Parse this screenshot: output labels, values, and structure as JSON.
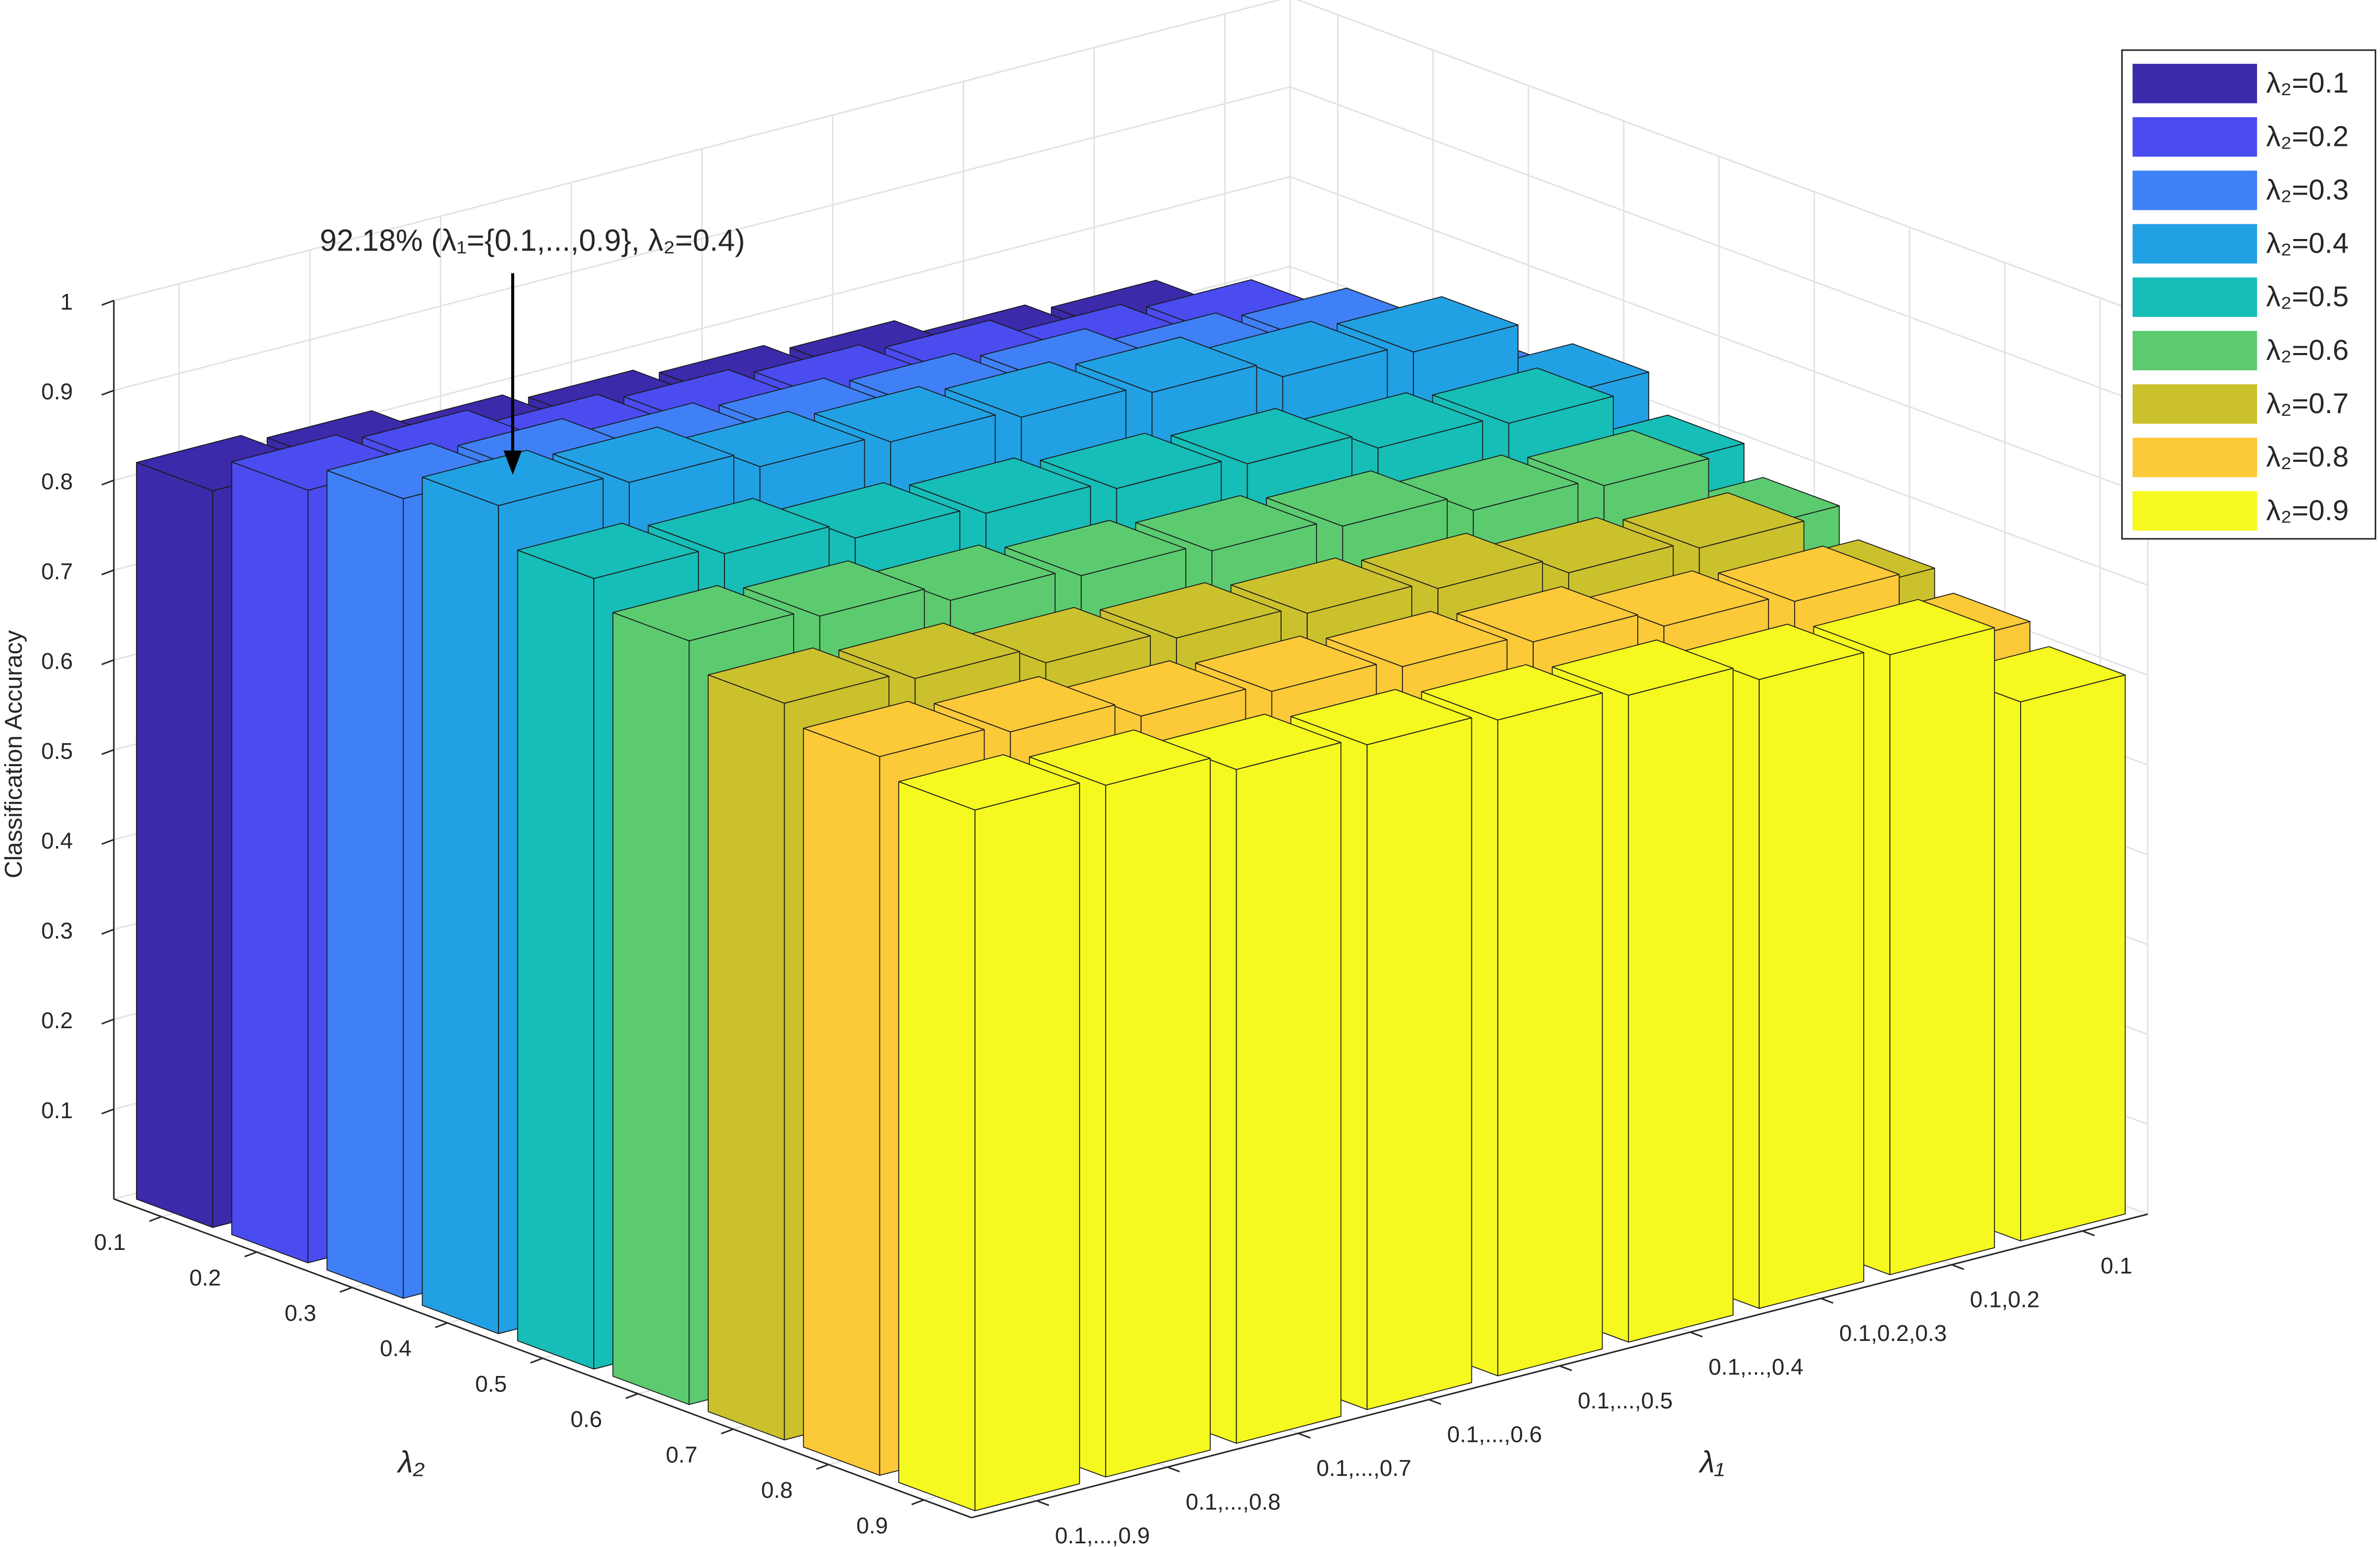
{
  "chart_data": {
    "type": "bar3d",
    "zlabel": "Classification Accuracy",
    "xlabel": "λ₂",
    "ylabel": "λ₁",
    "annotation": "92.18% (λ₁={0.1,...,0.9}, λ₂=0.4)",
    "x_categories": [
      "0.1",
      "0.2",
      "0.3",
      "0.4",
      "0.5",
      "0.6",
      "0.7",
      "0.8",
      "0.9"
    ],
    "categories": [
      "0.1",
      "0.1,0.2",
      "0.1,0.2,0.3",
      "0.1,...,0.4",
      "0.1,...,0.5",
      "0.1,...,0.6",
      "0.1,...,0.7",
      "0.1,...,0.8",
      "0.1,...,0.9"
    ],
    "series": [
      {
        "name": "λ₂=0.1",
        "color": "#3b2aa9",
        "values": [
          0.64,
          0.73,
          0.74,
          0.76,
          0.77,
          0.78,
          0.79,
          0.81,
          0.82
        ]
      },
      {
        "name": "λ₂=0.2",
        "color": "#4a4cf0",
        "values": [
          0.68,
          0.77,
          0.78,
          0.8,
          0.81,
          0.82,
          0.83,
          0.85,
          0.86
        ]
      },
      {
        "name": "λ₂=0.3",
        "color": "#3f80f6",
        "values": [
          0.71,
          0.8,
          0.81,
          0.83,
          0.84,
          0.85,
          0.86,
          0.88,
          0.89
        ]
      },
      {
        "name": "λ₂=0.4",
        "color": "#22a0e4",
        "values": [
          0.74,
          0.83,
          0.84,
          0.86,
          0.87,
          0.88,
          0.89,
          0.91,
          0.9218
        ]
      },
      {
        "name": "λ₂=0.5",
        "color": "#17bdb7",
        "values": [
          0.7,
          0.79,
          0.8,
          0.82,
          0.83,
          0.84,
          0.85,
          0.87,
          0.88
        ]
      },
      {
        "name": "λ₂=0.6",
        "color": "#5ccb70",
        "values": [
          0.67,
          0.76,
          0.77,
          0.79,
          0.8,
          0.81,
          0.82,
          0.84,
          0.85
        ]
      },
      {
        "name": "λ₂=0.7",
        "color": "#cbc12d",
        "values": [
          0.64,
          0.73,
          0.74,
          0.76,
          0.77,
          0.78,
          0.79,
          0.81,
          0.82
        ]
      },
      {
        "name": "λ₂=0.8",
        "color": "#fcc938",
        "values": [
          0.62,
          0.71,
          0.72,
          0.74,
          0.75,
          0.76,
          0.77,
          0.79,
          0.8
        ]
      },
      {
        "name": "λ₂=0.9",
        "color": "#f5f91f",
        "values": [
          0.6,
          0.69,
          0.7,
          0.72,
          0.73,
          0.74,
          0.75,
          0.77,
          0.78
        ]
      }
    ],
    "zlim": [
      0,
      1
    ],
    "zticks": [
      0.1,
      0.2,
      0.3,
      0.4,
      0.5,
      0.6,
      0.7,
      0.8,
      0.9,
      1
    ],
    "grid": true,
    "legend": "northeast"
  }
}
